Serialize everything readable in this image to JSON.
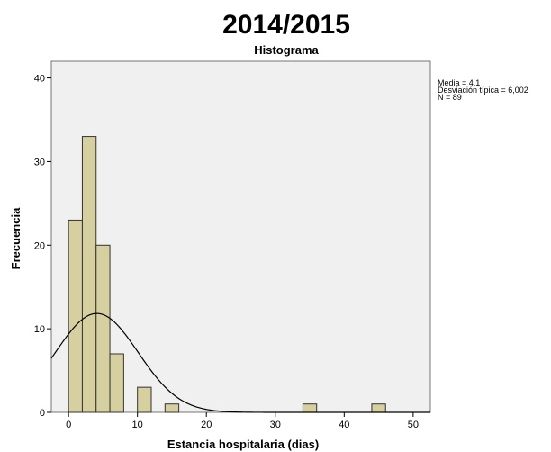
{
  "chart_data": {
    "type": "bar",
    "title": "2014/2015",
    "subtitle": "Histograma",
    "xlabel": "Estancia hospitalaria (dias)",
    "ylabel": "Frecuencia",
    "xlim": [
      -2.5,
      52.5
    ],
    "ylim": [
      0,
      42
    ],
    "x_ticks": [
      0,
      10,
      20,
      30,
      40,
      50
    ],
    "y_ticks": [
      0,
      10,
      20,
      30,
      40
    ],
    "bin_width": 2,
    "bins": [
      {
        "start": 0,
        "end": 2,
        "count": 23
      },
      {
        "start": 2,
        "end": 4,
        "count": 33
      },
      {
        "start": 4,
        "end": 6,
        "count": 20
      },
      {
        "start": 6,
        "end": 8,
        "count": 7
      },
      {
        "start": 10,
        "end": 12,
        "count": 3
      },
      {
        "start": 14,
        "end": 16,
        "count": 1
      },
      {
        "start": 34,
        "end": 36,
        "count": 1
      },
      {
        "start": 44,
        "end": 46,
        "count": 1
      }
    ],
    "normal_curve": {
      "mean": 4.1,
      "sd": 6.002,
      "n": 89
    },
    "stats": [
      "Media = 4,1",
      "Desviación típica = 6,002",
      "N = 89"
    ],
    "stats_position": "top-right",
    "grid": false,
    "colors": {
      "bar_fill": "#d6d0a0",
      "bar_stroke": "#333333",
      "plot_background": "#f0f0f0",
      "curve": "#000000"
    }
  }
}
